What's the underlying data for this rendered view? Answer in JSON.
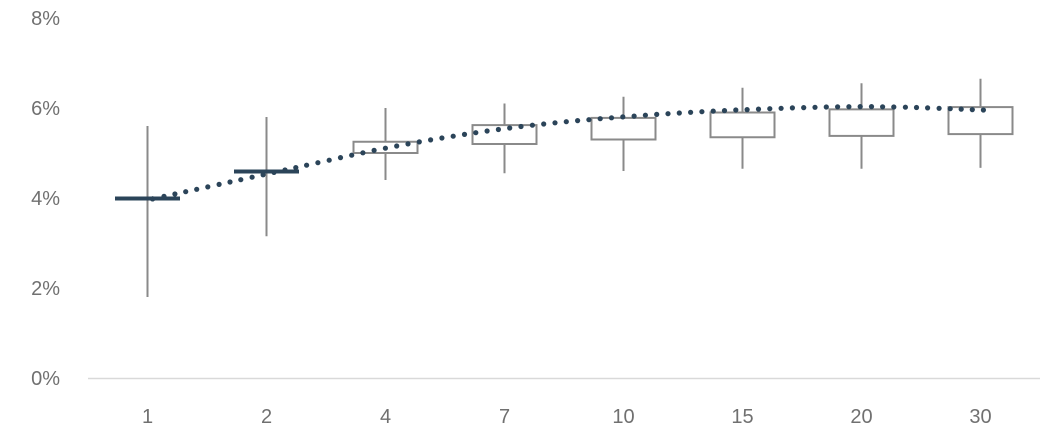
{
  "chart_data": {
    "type": "boxplot",
    "categories": [
      "1",
      "2",
      "4",
      "7",
      "10",
      "15",
      "20",
      "30"
    ],
    "ylim": [
      0,
      8
    ],
    "y_ticks": [
      "0%",
      "2%",
      "4%",
      "6%",
      "8%"
    ],
    "y_tick_values": [
      0,
      2,
      4,
      6,
      8
    ],
    "boxes": [
      {
        "category": "1",
        "min": 1.8,
        "q1": 3.97,
        "q3": 4.0,
        "max": 5.6
      },
      {
        "category": "2",
        "min": 3.15,
        "q1": 4.57,
        "q3": 4.6,
        "max": 5.8
      },
      {
        "category": "4",
        "min": 4.4,
        "q1": 5.0,
        "q3": 5.25,
        "max": 6.0
      },
      {
        "category": "7",
        "min": 4.55,
        "q1": 5.2,
        "q3": 5.62,
        "max": 6.1
      },
      {
        "category": "10",
        "min": 4.6,
        "q1": 5.3,
        "q3": 5.78,
        "max": 6.25
      },
      {
        "category": "15",
        "min": 4.65,
        "q1": 5.35,
        "q3": 5.9,
        "max": 6.45
      },
      {
        "category": "20",
        "min": 4.65,
        "q1": 5.38,
        "q3": 5.97,
        "max": 6.55
      },
      {
        "category": "30",
        "min": 4.67,
        "q1": 5.42,
        "q3": 6.02,
        "max": 6.65
      }
    ],
    "trend": {
      "style": "dotted",
      "values": [
        3.98,
        4.58,
        5.15,
        5.57,
        5.82,
        5.97,
        6.03,
        5.95
      ]
    },
    "colors": {
      "box": "#8a8a8a",
      "narrow_box": "#2b4459",
      "trend": "#2b4459",
      "axis": "#d9d9d9",
      "tick_text": "#707070"
    },
    "grid": false,
    "legend": "none"
  }
}
